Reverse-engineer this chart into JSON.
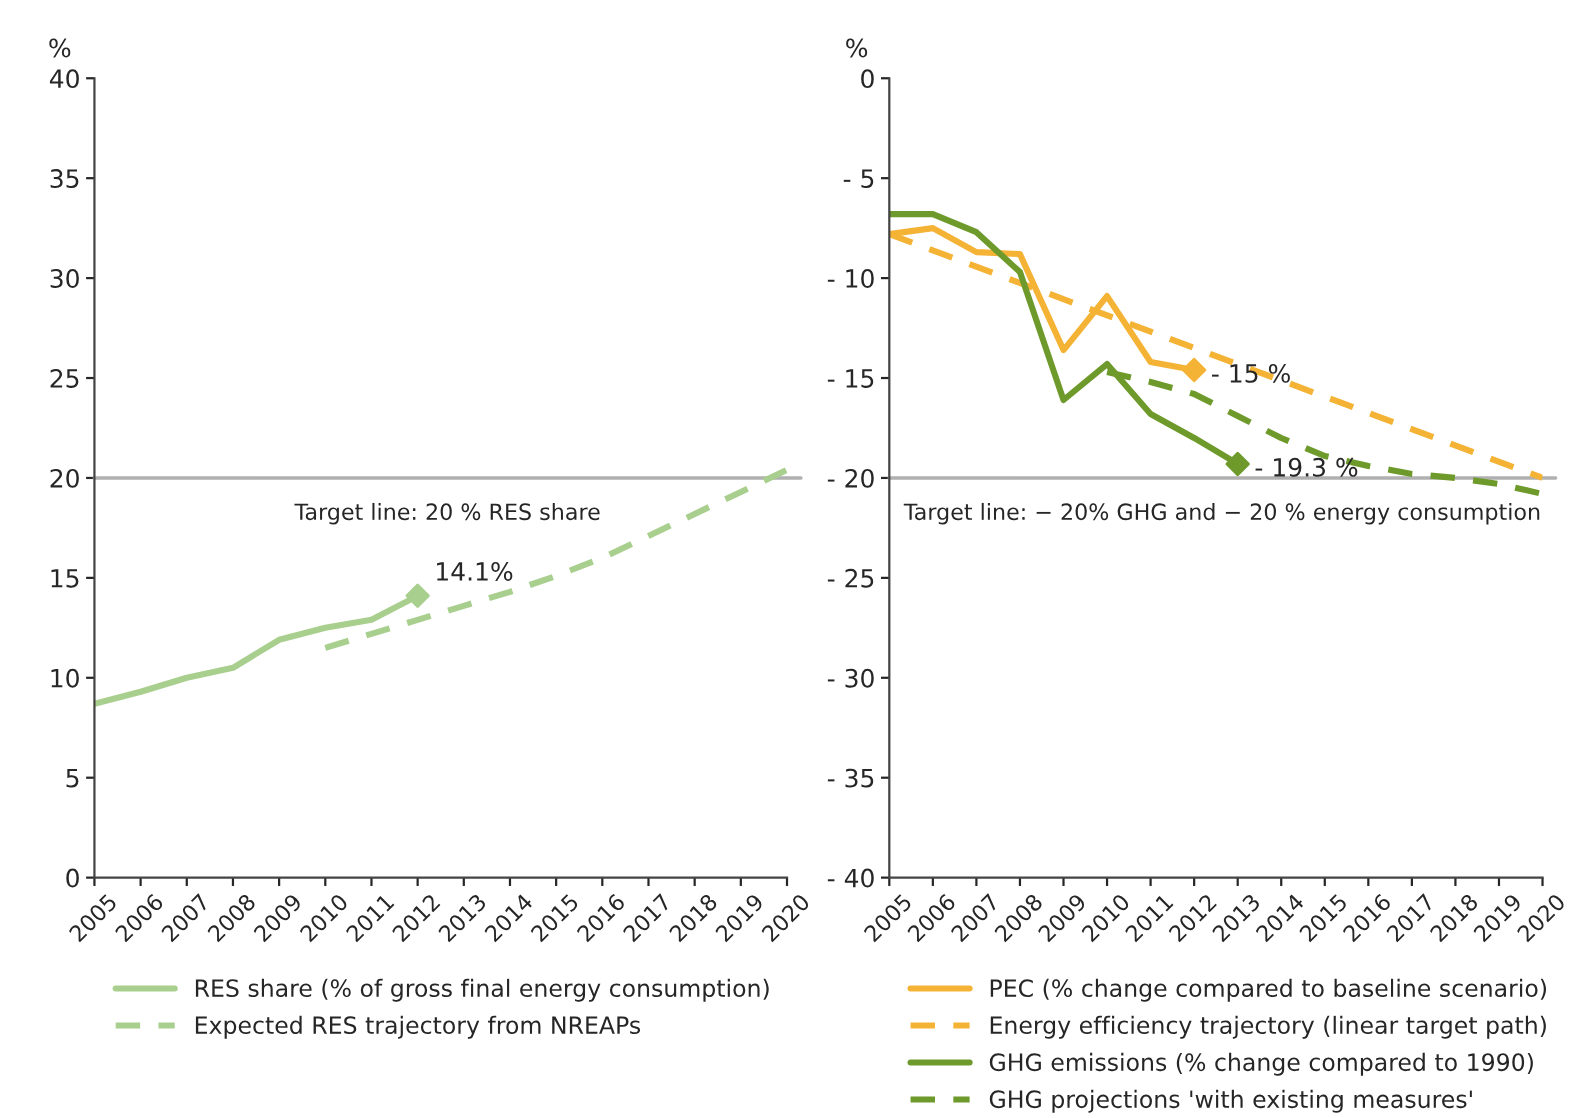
{
  "chart_data": [
    {
      "type": "line",
      "ylabel": "%",
      "xlim": [
        2005,
        2020
      ],
      "xticks": [
        2005,
        2006,
        2007,
        2008,
        2009,
        2010,
        2011,
        2012,
        2013,
        2014,
        2015,
        2016,
        2017,
        2018,
        2019,
        2020
      ],
      "ylim": [
        0,
        40
      ],
      "yticks": [
        0,
        5,
        10,
        15,
        20,
        25,
        30,
        35,
        40
      ],
      "grid": false,
      "legend": "bottom",
      "series": [
        {
          "name": "RES share (% of gross final energy consumption)",
          "color": "#a8cf8e",
          "line_style": "solid",
          "x": [
            2005,
            2006,
            2007,
            2008,
            2009,
            2010,
            2011,
            2012
          ],
          "values": [
            8.7,
            9.3,
            10.0,
            10.5,
            11.9,
            12.5,
            12.9,
            14.1
          ]
        },
        {
          "name": "Expected RES trajectory from NREAPs",
          "color": "#a8cf8e",
          "line_style": "dashed",
          "x": [
            2010,
            2011,
            2012,
            2013,
            2014,
            2015,
            2016,
            2017,
            2018,
            2019,
            2020
          ],
          "values": [
            11.5,
            12.2,
            12.9,
            13.6,
            14.3,
            15.1,
            16.0,
            17.1,
            18.2,
            19.3,
            20.4
          ]
        },
        {
          "type": "scatter",
          "color": "#a8cf8e",
          "marker": "diamond",
          "x": [
            2012
          ],
          "values": [
            14.1
          ],
          "value_labels": [
            "14.1%"
          ]
        }
      ],
      "ref_lines": [
        {
          "axis": "y",
          "value": 20,
          "label": "Target line: 20 % RES share",
          "color": "#b0b0b0"
        }
      ]
    },
    {
      "type": "line",
      "ylabel": "%",
      "xlim": [
        2005,
        2020
      ],
      "xticks": [
        2005,
        2006,
        2007,
        2008,
        2009,
        2010,
        2011,
        2012,
        2013,
        2014,
        2015,
        2016,
        2017,
        2018,
        2019,
        2020
      ],
      "ylim": [
        -40,
        0
      ],
      "yticks": [
        {
          "value": -40,
          "label": "- 40"
        },
        {
          "value": -35,
          "label": "- 35"
        },
        {
          "value": -30,
          "label": "- 30"
        },
        {
          "value": -25,
          "label": "- 25"
        },
        {
          "value": -20,
          "label": "- 20"
        },
        {
          "value": -15,
          "label": "- 15"
        },
        {
          "value": -10,
          "label": "- 10"
        },
        {
          "value": -5,
          "label": "- 5"
        },
        0
      ],
      "grid": false,
      "legend": "bottom",
      "series": [
        {
          "name": "PEC (% change compared to baseline scenario)",
          "color": "#f5b335",
          "line_style": "solid",
          "x": [
            2005,
            2006,
            2007,
            2008,
            2009,
            2010,
            2011,
            2012
          ],
          "values": [
            -7.8,
            -7.5,
            -8.7,
            -8.8,
            -13.6,
            -10.9,
            -14.2,
            -14.6
          ]
        },
        {
          "name": "Energy efficiency trajectory (linear target path)",
          "color": "#f5b335",
          "line_style": "dashed",
          "x": [
            2005,
            2020
          ],
          "values": [
            -7.8,
            -20.0
          ]
        },
        {
          "name": "GHG emissions (% change compared to 1990)",
          "color": "#6e9a2c",
          "line_style": "solid",
          "x": [
            2005,
            2006,
            2007,
            2008,
            2009,
            2010,
            2011,
            2012,
            2013
          ],
          "values": [
            -6.8,
            -6.8,
            -7.7,
            -9.7,
            -16.1,
            -14.3,
            -16.8,
            -18.0,
            -19.3
          ]
        },
        {
          "name": "GHG projections 'with existing measures'",
          "color": "#6e9a2c",
          "line_style": "dashed",
          "x": [
            2010,
            2011,
            2012,
            2013,
            2014,
            2015,
            2016,
            2017,
            2018,
            2019,
            2020
          ],
          "values": [
            -14.7,
            -15.2,
            -15.8,
            -16.9,
            -18.0,
            -18.9,
            -19.4,
            -19.8,
            -20.0,
            -20.3,
            -20.8
          ]
        },
        {
          "type": "scatter",
          "color": "#f5b335",
          "marker": "diamond",
          "x": [
            2012
          ],
          "values": [
            -14.6
          ],
          "value_labels": [
            "- 15 %"
          ]
        },
        {
          "type": "scatter",
          "color": "#6e9a2c",
          "marker": "diamond",
          "x": [
            2013
          ],
          "values": [
            -19.3
          ],
          "value_labels": [
            "- 19.3 %"
          ]
        }
      ],
      "ref_lines": [
        {
          "axis": "y",
          "value": -20,
          "label": "Target line: − 20% GHG and − 20 % energy consumption",
          "color": "#b0b0b0"
        }
      ]
    }
  ]
}
